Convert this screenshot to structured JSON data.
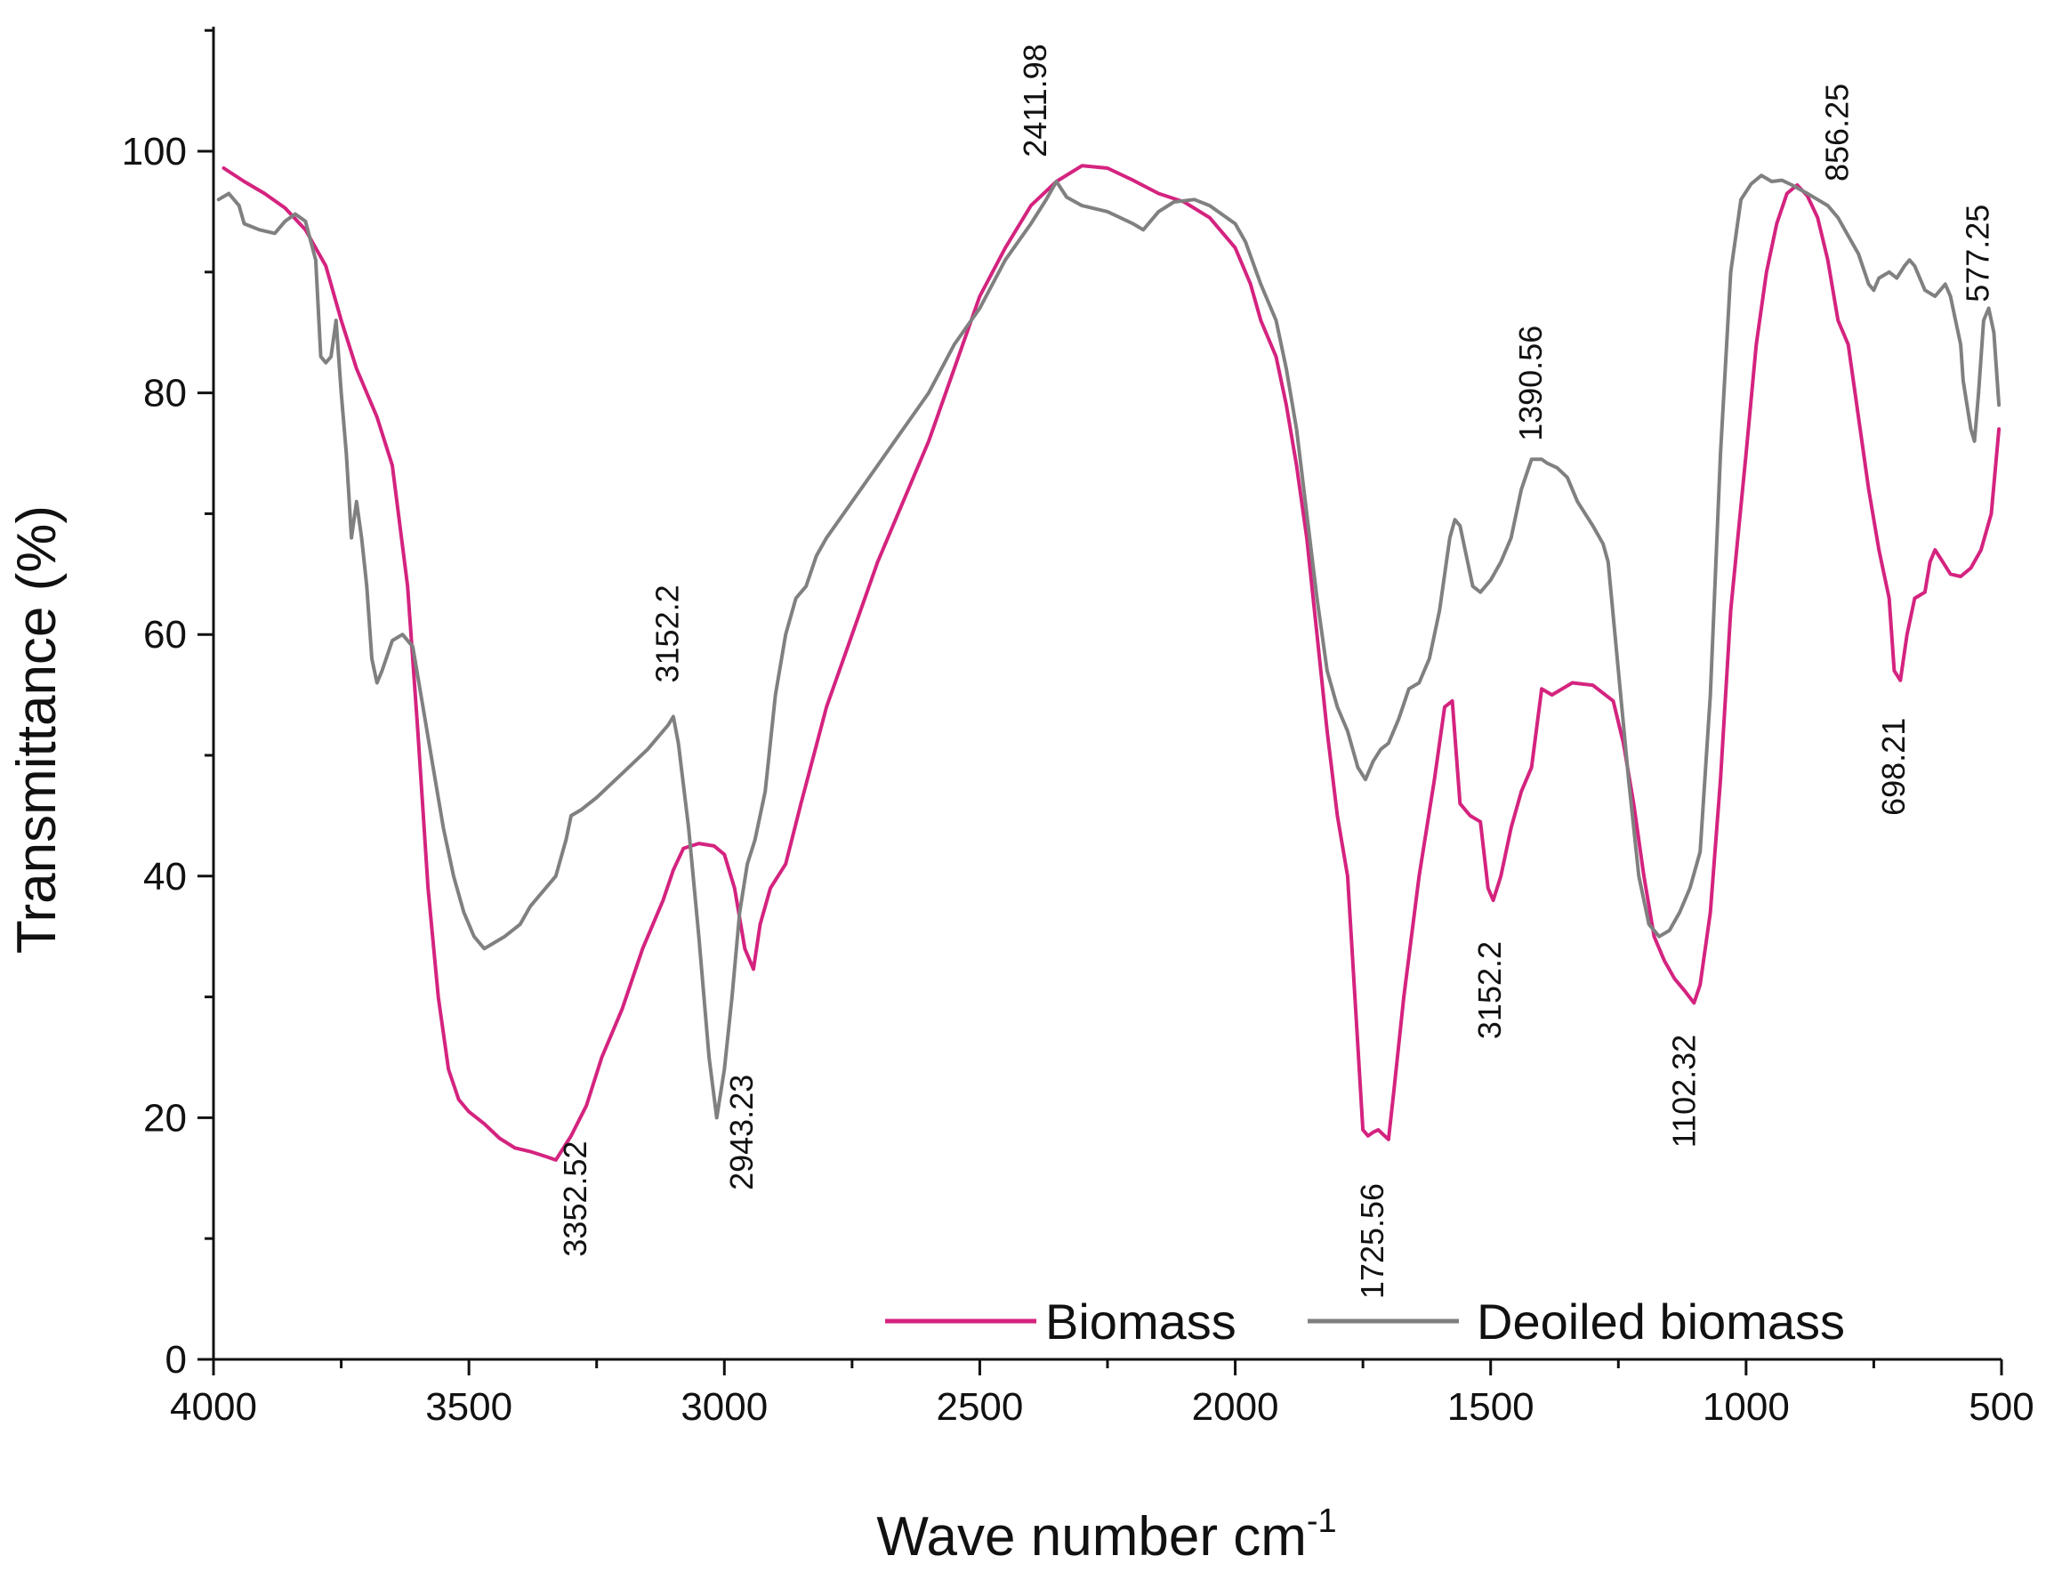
{
  "chart_data": {
    "type": "line",
    "title": "",
    "xlabel": "Wave number cm",
    "xlabel_superscript": "-1",
    "ylabel": "Transmittance (%)",
    "xlim": [
      4000,
      500
    ],
    "ylim": [
      0,
      110
    ],
    "xticks": [
      4000,
      3500,
      3000,
      2500,
      2000,
      1500,
      1000,
      500
    ],
    "yticks": [
      0,
      20,
      40,
      60,
      80,
      100
    ],
    "legend_position": "bottom-right",
    "series": [
      {
        "name": "Biomass",
        "color": "#d4237f",
        "points": [
          [
            3980,
            98.6
          ],
          [
            3940,
            97.5
          ],
          [
            3900,
            96.5
          ],
          [
            3860,
            95.3
          ],
          [
            3820,
            93.5
          ],
          [
            3780,
            90.5
          ],
          [
            3750,
            86
          ],
          [
            3720,
            82
          ],
          [
            3680,
            78
          ],
          [
            3650,
            74
          ],
          [
            3620,
            64
          ],
          [
            3600,
            52
          ],
          [
            3580,
            39
          ],
          [
            3560,
            30
          ],
          [
            3540,
            24
          ],
          [
            3520,
            21.5
          ],
          [
            3500,
            20.5
          ],
          [
            3470,
            19.5
          ],
          [
            3440,
            18.3
          ],
          [
            3410,
            17.5
          ],
          [
            3380,
            17.2
          ],
          [
            3350,
            16.8
          ],
          [
            3330,
            16.5
          ],
          [
            3300,
            18.5
          ],
          [
            3270,
            21
          ],
          [
            3240,
            25
          ],
          [
            3200,
            29
          ],
          [
            3160,
            34
          ],
          [
            3120,
            38
          ],
          [
            3100,
            40.5
          ],
          [
            3080,
            42.3
          ],
          [
            3050,
            42.7
          ],
          [
            3020,
            42.5
          ],
          [
            3000,
            41.8
          ],
          [
            2980,
            39
          ],
          [
            2960,
            34
          ],
          [
            2950,
            33
          ],
          [
            2943,
            32.3
          ],
          [
            2930,
            36
          ],
          [
            2910,
            39
          ],
          [
            2880,
            41
          ],
          [
            2850,
            46
          ],
          [
            2800,
            54
          ],
          [
            2750,
            60
          ],
          [
            2700,
            66
          ],
          [
            2650,
            71
          ],
          [
            2600,
            76
          ],
          [
            2550,
            82
          ],
          [
            2500,
            88
          ],
          [
            2450,
            92
          ],
          [
            2400,
            95.5
          ],
          [
            2350,
            97.5
          ],
          [
            2300,
            98.8
          ],
          [
            2250,
            98.6
          ],
          [
            2200,
            97.6
          ],
          [
            2150,
            96.5
          ],
          [
            2100,
            95.8
          ],
          [
            2050,
            94.5
          ],
          [
            2000,
            92
          ],
          [
            1970,
            89
          ],
          [
            1950,
            86
          ],
          [
            1920,
            83
          ],
          [
            1900,
            79
          ],
          [
            1880,
            74
          ],
          [
            1860,
            68
          ],
          [
            1840,
            60
          ],
          [
            1820,
            52
          ],
          [
            1800,
            45
          ],
          [
            1780,
            40
          ],
          [
            1760,
            26
          ],
          [
            1750,
            19
          ],
          [
            1740,
            18.5
          ],
          [
            1730,
            18.8
          ],
          [
            1720,
            19
          ],
          [
            1710,
            18.6
          ],
          [
            1700,
            18.2
          ],
          [
            1690,
            22
          ],
          [
            1670,
            30
          ],
          [
            1640,
            40
          ],
          [
            1610,
            48
          ],
          [
            1590,
            54
          ],
          [
            1575,
            54.5
          ],
          [
            1560,
            46
          ],
          [
            1540,
            45
          ],
          [
            1520,
            44.5
          ],
          [
            1505,
            39
          ],
          [
            1495,
            38
          ],
          [
            1480,
            40
          ],
          [
            1460,
            44
          ],
          [
            1440,
            47
          ],
          [
            1420,
            49
          ],
          [
            1400,
            55.5
          ],
          [
            1380,
            55
          ],
          [
            1360,
            55.5
          ],
          [
            1340,
            56
          ],
          [
            1300,
            55.8
          ],
          [
            1260,
            54.5
          ],
          [
            1240,
            51
          ],
          [
            1220,
            46
          ],
          [
            1200,
            40
          ],
          [
            1180,
            35
          ],
          [
            1160,
            33
          ],
          [
            1140,
            31.5
          ],
          [
            1120,
            30.5
          ],
          [
            1102,
            29.5
          ],
          [
            1090,
            31
          ],
          [
            1070,
            37
          ],
          [
            1050,
            48
          ],
          [
            1030,
            62
          ],
          [
            1000,
            75
          ],
          [
            980,
            84
          ],
          [
            960,
            90
          ],
          [
            940,
            94
          ],
          [
            920,
            96.5
          ],
          [
            900,
            97.2
          ],
          [
            880,
            96.3
          ],
          [
            860,
            94.5
          ],
          [
            840,
            91
          ],
          [
            820,
            86
          ],
          [
            800,
            84
          ],
          [
            780,
            78
          ],
          [
            760,
            72
          ],
          [
            740,
            67
          ],
          [
            720,
            63
          ],
          [
            710,
            57
          ],
          [
            698,
            56.2
          ],
          [
            685,
            60
          ],
          [
            670,
            63
          ],
          [
            650,
            63.5
          ],
          [
            640,
            66
          ],
          [
            630,
            67
          ],
          [
            615,
            66
          ],
          [
            600,
            65
          ],
          [
            580,
            64.8
          ],
          [
            560,
            65.5
          ],
          [
            540,
            67
          ],
          [
            520,
            70
          ],
          [
            505,
            77
          ]
        ]
      },
      {
        "name": "Deoiled biomass",
        "color": "#808080",
        "points": [
          [
            3990,
            96
          ],
          [
            3970,
            96.5
          ],
          [
            3950,
            95.5
          ],
          [
            3940,
            94
          ],
          [
            3910,
            93.5
          ],
          [
            3880,
            93.2
          ],
          [
            3860,
            94.2
          ],
          [
            3840,
            94.8
          ],
          [
            3820,
            94.2
          ],
          [
            3800,
            91
          ],
          [
            3790,
            83
          ],
          [
            3780,
            82.5
          ],
          [
            3770,
            83
          ],
          [
            3760,
            86
          ],
          [
            3750,
            80
          ],
          [
            3740,
            75
          ],
          [
            3730,
            68
          ],
          [
            3720,
            71
          ],
          [
            3710,
            68
          ],
          [
            3700,
            64
          ],
          [
            3690,
            58
          ],
          [
            3680,
            56
          ],
          [
            3670,
            57
          ],
          [
            3650,
            59.5
          ],
          [
            3630,
            60
          ],
          [
            3610,
            59
          ],
          [
            3590,
            54
          ],
          [
            3570,
            49
          ],
          [
            3550,
            44
          ],
          [
            3530,
            40
          ],
          [
            3510,
            37
          ],
          [
            3490,
            35
          ],
          [
            3470,
            34
          ],
          [
            3450,
            34.5
          ],
          [
            3430,
            35
          ],
          [
            3400,
            36
          ],
          [
            3380,
            37.5
          ],
          [
            3350,
            39
          ],
          [
            3330,
            40
          ],
          [
            3310,
            43
          ],
          [
            3300,
            45
          ],
          [
            3280,
            45.5
          ],
          [
            3250,
            46.5
          ],
          [
            3200,
            48.5
          ],
          [
            3150,
            50.5
          ],
          [
            3110,
            52.5
          ],
          [
            3100,
            53.2
          ],
          [
            3090,
            51
          ],
          [
            3070,
            44
          ],
          [
            3050,
            35
          ],
          [
            3030,
            25
          ],
          [
            3015,
            20
          ],
          [
            3000,
            24
          ],
          [
            2985,
            30
          ],
          [
            2970,
            37
          ],
          [
            2955,
            41
          ],
          [
            2940,
            43
          ],
          [
            2920,
            47
          ],
          [
            2900,
            55
          ],
          [
            2880,
            60
          ],
          [
            2860,
            63
          ],
          [
            2840,
            64
          ],
          [
            2820,
            66.5
          ],
          [
            2800,
            68
          ],
          [
            2750,
            71
          ],
          [
            2700,
            74
          ],
          [
            2650,
            77
          ],
          [
            2600,
            80
          ],
          [
            2550,
            84
          ],
          [
            2500,
            87
          ],
          [
            2450,
            91
          ],
          [
            2400,
            94
          ],
          [
            2370,
            96
          ],
          [
            2350,
            97.5
          ],
          [
            2330,
            96.2
          ],
          [
            2300,
            95.5
          ],
          [
            2250,
            95
          ],
          [
            2200,
            94
          ],
          [
            2180,
            93.5
          ],
          [
            2150,
            95
          ],
          [
            2120,
            95.8
          ],
          [
            2080,
            96
          ],
          [
            2050,
            95.5
          ],
          [
            2000,
            94
          ],
          [
            1980,
            92.5
          ],
          [
            1950,
            89
          ],
          [
            1920,
            86
          ],
          [
            1900,
            82
          ],
          [
            1880,
            77
          ],
          [
            1860,
            70
          ],
          [
            1840,
            63
          ],
          [
            1820,
            57
          ],
          [
            1800,
            54
          ],
          [
            1780,
            52
          ],
          [
            1760,
            49
          ],
          [
            1745,
            48
          ],
          [
            1730,
            49.5
          ],
          [
            1715,
            50.5
          ],
          [
            1700,
            51
          ],
          [
            1680,
            53
          ],
          [
            1660,
            55.5
          ],
          [
            1640,
            56
          ],
          [
            1620,
            58
          ],
          [
            1600,
            62
          ],
          [
            1580,
            68
          ],
          [
            1570,
            69.5
          ],
          [
            1560,
            69
          ],
          [
            1550,
            67
          ],
          [
            1535,
            64
          ],
          [
            1520,
            63.5
          ],
          [
            1500,
            64.5
          ],
          [
            1480,
            66
          ],
          [
            1460,
            68
          ],
          [
            1440,
            72
          ],
          [
            1420,
            74.5
          ],
          [
            1400,
            74.5
          ],
          [
            1390,
            74.2
          ],
          [
            1370,
            73.8
          ],
          [
            1350,
            73
          ],
          [
            1330,
            71
          ],
          [
            1300,
            69
          ],
          [
            1280,
            67.5
          ],
          [
            1270,
            66
          ],
          [
            1250,
            57
          ],
          [
            1230,
            48
          ],
          [
            1210,
            40
          ],
          [
            1190,
            36
          ],
          [
            1170,
            35
          ],
          [
            1150,
            35.5
          ],
          [
            1130,
            37
          ],
          [
            1110,
            39
          ],
          [
            1090,
            42
          ],
          [
            1070,
            55
          ],
          [
            1050,
            75
          ],
          [
            1030,
            90
          ],
          [
            1010,
            96
          ],
          [
            990,
            97.3
          ],
          [
            970,
            98
          ],
          [
            950,
            97.5
          ],
          [
            930,
            97.6
          ],
          [
            910,
            97.2
          ],
          [
            880,
            96.5
          ],
          [
            860,
            96
          ],
          [
            840,
            95.5
          ],
          [
            820,
            94.5
          ],
          [
            800,
            93
          ],
          [
            780,
            91.5
          ],
          [
            760,
            89
          ],
          [
            750,
            88.5
          ],
          [
            740,
            89.5
          ],
          [
            720,
            90
          ],
          [
            705,
            89.5
          ],
          [
            690,
            90.5
          ],
          [
            680,
            91
          ],
          [
            670,
            90.5
          ],
          [
            650,
            88.5
          ],
          [
            630,
            88
          ],
          [
            610,
            89
          ],
          [
            600,
            88
          ],
          [
            590,
            86
          ],
          [
            580,
            84
          ],
          [
            575,
            81
          ],
          [
            560,
            77
          ],
          [
            553,
            76
          ],
          [
            545,
            80
          ],
          [
            535,
            86
          ],
          [
            525,
            87
          ],
          [
            515,
            85
          ],
          [
            505,
            79
          ]
        ]
      }
    ],
    "annotations": [
      {
        "text": "3352.52",
        "x": 3270,
        "y": 8.5
      },
      {
        "text": "3152.2",
        "x": 3090,
        "y": 56
      },
      {
        "text": "2943.23",
        "x": 2945,
        "y": 14
      },
      {
        "text": "2411.98",
        "x": 2370,
        "y": 99.5
      },
      {
        "text": "1725.56",
        "x": 1710,
        "y": 5
      },
      {
        "text": "3152.2",
        "x": 1480,
        "y": 26.5
      },
      {
        "text": "1390.56",
        "x": 1400,
        "y": 76
      },
      {
        "text": "1102.32",
        "x": 1100,
        "y": 17.5
      },
      {
        "text": "856.25",
        "x": 800,
        "y": 97.5
      },
      {
        "text": "698.21",
        "x": 690,
        "y": 45
      },
      {
        "text": "577.25",
        "x": 525,
        "y": 87.5
      }
    ]
  }
}
